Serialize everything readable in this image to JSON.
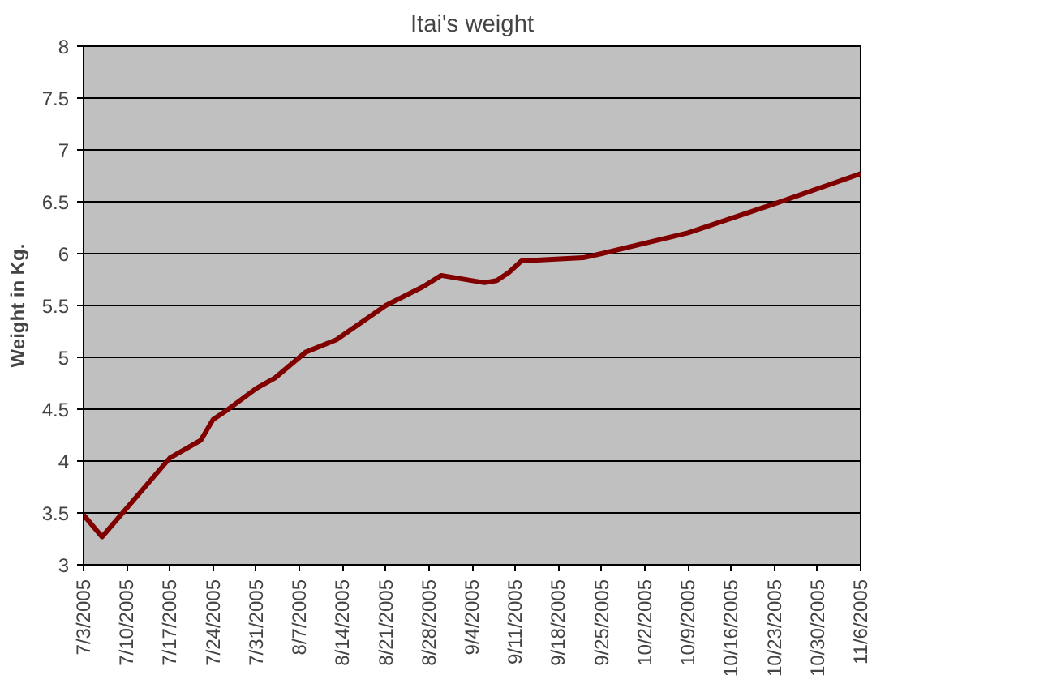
{
  "chart_data": {
    "type": "line",
    "title": "Itai's weight",
    "ylabel": "Weight in Kg.",
    "x": [
      "2005-07-03",
      "2005-07-06",
      "2005-07-17",
      "2005-07-22",
      "2005-07-24",
      "2005-07-26",
      "2005-07-31",
      "2005-08-03",
      "2005-08-08",
      "2005-08-13",
      "2005-08-21",
      "2005-08-27",
      "2005-08-30",
      "2005-09-06",
      "2005-09-08",
      "2005-09-10",
      "2005-09-12",
      "2005-09-22",
      "2005-09-25",
      "2005-10-09",
      "2005-10-23",
      "2005-11-06"
    ],
    "series": [
      {
        "color": "#800000",
        "values": [
          3.48,
          3.27,
          4.03,
          4.2,
          4.4,
          4.48,
          4.7,
          4.8,
          5.05,
          5.17,
          5.5,
          5.68,
          5.79,
          5.72,
          5.74,
          5.82,
          5.93,
          5.96,
          6.0,
          6.2,
          6.48,
          6.77
        ]
      }
    ],
    "xlim": [
      "2005-07-03",
      "2005-11-06"
    ],
    "xticks": [
      {
        "value": "2005-07-03",
        "label": "7/3/2005"
      },
      {
        "value": "2005-07-10",
        "label": "7/10/2005"
      },
      {
        "value": "2005-07-17",
        "label": "7/17/2005"
      },
      {
        "value": "2005-07-24",
        "label": "7/24/2005"
      },
      {
        "value": "2005-07-31",
        "label": "7/31/2005"
      },
      {
        "value": "2005-08-07",
        "label": "8/7/2005"
      },
      {
        "value": "2005-08-14",
        "label": "8/14/2005"
      },
      {
        "value": "2005-08-21",
        "label": "8/21/2005"
      },
      {
        "value": "2005-08-28",
        "label": "8/28/2005"
      },
      {
        "value": "2005-09-04",
        "label": "9/4/2005"
      },
      {
        "value": "2005-09-11",
        "label": "9/11/2005"
      },
      {
        "value": "2005-09-18",
        "label": "9/18/2005"
      },
      {
        "value": "2005-09-25",
        "label": "9/25/2005"
      },
      {
        "value": "2005-10-02",
        "label": "10/2/2005"
      },
      {
        "value": "2005-10-09",
        "label": "10/9/2005"
      },
      {
        "value": "2005-10-16",
        "label": "10/16/2005"
      },
      {
        "value": "2005-10-23",
        "label": "10/23/2005"
      },
      {
        "value": "2005-10-30",
        "label": "10/30/2005"
      },
      {
        "value": "2005-11-06",
        "label": "11/6/2005"
      }
    ],
    "ylim": [
      3,
      8
    ],
    "yticks": [
      3,
      3.5,
      4,
      4.5,
      5,
      5.5,
      6,
      6.5,
      7,
      7.5,
      8
    ],
    "grid": "y",
    "line_style": "solid",
    "marker": "none"
  }
}
